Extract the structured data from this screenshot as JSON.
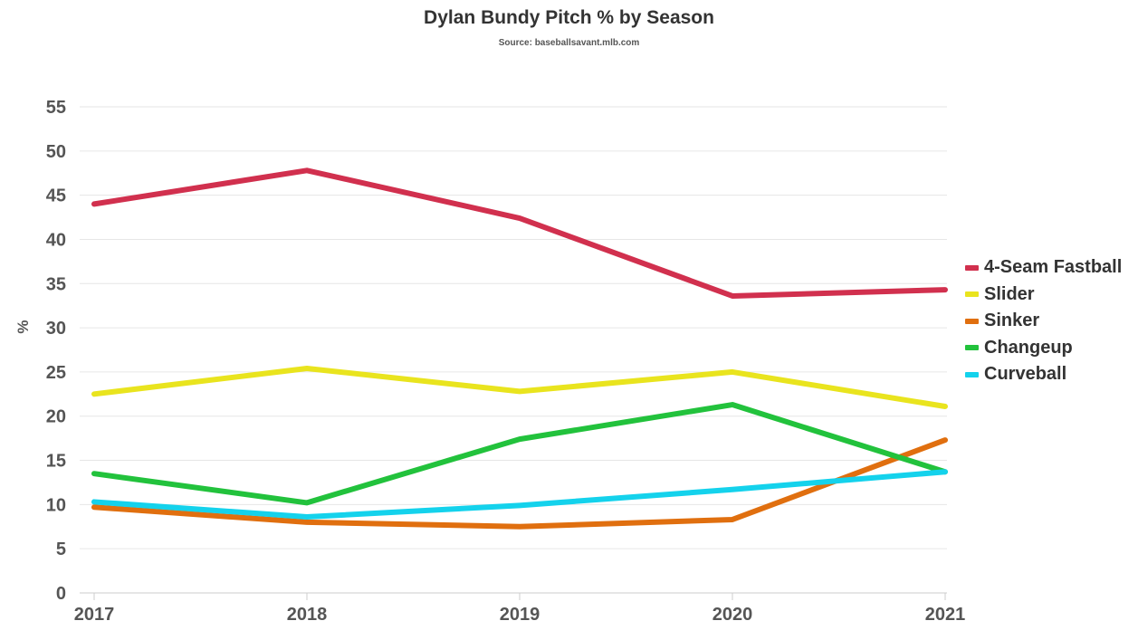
{
  "chart_data": {
    "type": "line",
    "title": "Dylan Bundy Pitch % by Season",
    "subtitle": "Source: baseballsavant.mlb.com",
    "xlabel": "",
    "ylabel": "%",
    "x": [
      "2017",
      "2018",
      "2019",
      "2020",
      "2021"
    ],
    "yticks": [
      0,
      5,
      10,
      15,
      20,
      25,
      30,
      35,
      40,
      45,
      50,
      55
    ],
    "ylim": [
      0,
      55
    ],
    "grid": true,
    "legend_position": "right",
    "series": [
      {
        "name": "4-Seam Fastball",
        "color": "#d1304e",
        "values": [
          44.0,
          47.8,
          42.4,
          33.6,
          34.3
        ]
      },
      {
        "name": "Slider",
        "color": "#e9e41e",
        "values": [
          22.5,
          25.4,
          22.8,
          25.0,
          21.1
        ]
      },
      {
        "name": "Sinker",
        "color": "#e06f0f",
        "values": [
          9.7,
          8.0,
          7.5,
          8.3,
          17.3
        ]
      },
      {
        "name": "Changeup",
        "color": "#22c23c",
        "values": [
          13.5,
          10.2,
          17.4,
          21.3,
          13.7
        ]
      },
      {
        "name": "Curveball",
        "color": "#14d2ec",
        "values": [
          10.3,
          8.6,
          9.9,
          11.7,
          13.7
        ]
      }
    ]
  }
}
